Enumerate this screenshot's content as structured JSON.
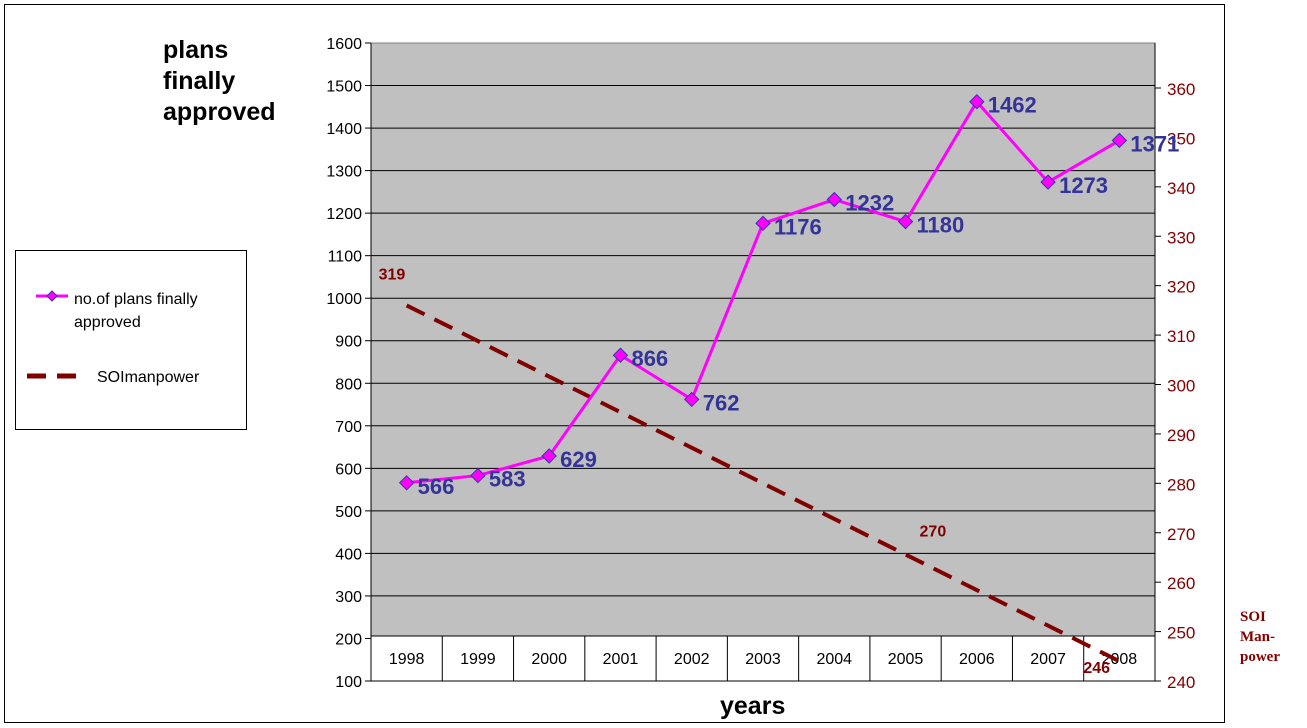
{
  "chart_data": {
    "type": "line",
    "categories": [
      "1998",
      "1999",
      "2000",
      "2001",
      "2002",
      "2003",
      "2004",
      "2005",
      "2006",
      "2007",
      "2008"
    ],
    "series": [
      {
        "name": "no.of plans finally approved",
        "axis": "left",
        "color": "#FF00FF",
        "marker_color": "#FF00FF",
        "marker_border": "#3333AA",
        "label_color": "#333399",
        "line_style": "solid",
        "values": [
          566,
          583,
          629,
          866,
          762,
          1176,
          1232,
          1180,
          1462,
          1273,
          1371
        ]
      },
      {
        "name": "SOImanpower",
        "axis": "right",
        "color": "#800000",
        "label_color": "#800000",
        "line_style": "dashed",
        "trend_start": 316,
        "trend_end": 244,
        "labeled_points": [
          {
            "category": "1998",
            "label": "319"
          },
          {
            "category": "2005",
            "label": "270"
          },
          {
            "category": "2008",
            "label": "246"
          }
        ]
      }
    ],
    "y_left": {
      "title": "plans\nfinally\napproved",
      "min": 100,
      "max": 1600,
      "step": 100,
      "ticks": [
        "100",
        "200",
        "300",
        "400",
        "500",
        "600",
        "700",
        "800",
        "900",
        "1000",
        "1100",
        "1200",
        "1300",
        "1400",
        "1500",
        "1600"
      ]
    },
    "y_right": {
      "title": "SOI Man-power",
      "min": 240,
      "max": 360,
      "step": 10,
      "ticks": [
        "240",
        "250",
        "260",
        "270",
        "280",
        "290",
        "300",
        "310",
        "320",
        "330",
        "340",
        "350",
        "360"
      ],
      "color": "#800000"
    },
    "xlabel": "years",
    "plot_background": "#C0C0C0",
    "grid": true,
    "legend_position": "left"
  },
  "legend": {
    "items": [
      {
        "label": "no.of plans finally\napproved"
      },
      {
        "label": "SOImanpower"
      }
    ]
  }
}
